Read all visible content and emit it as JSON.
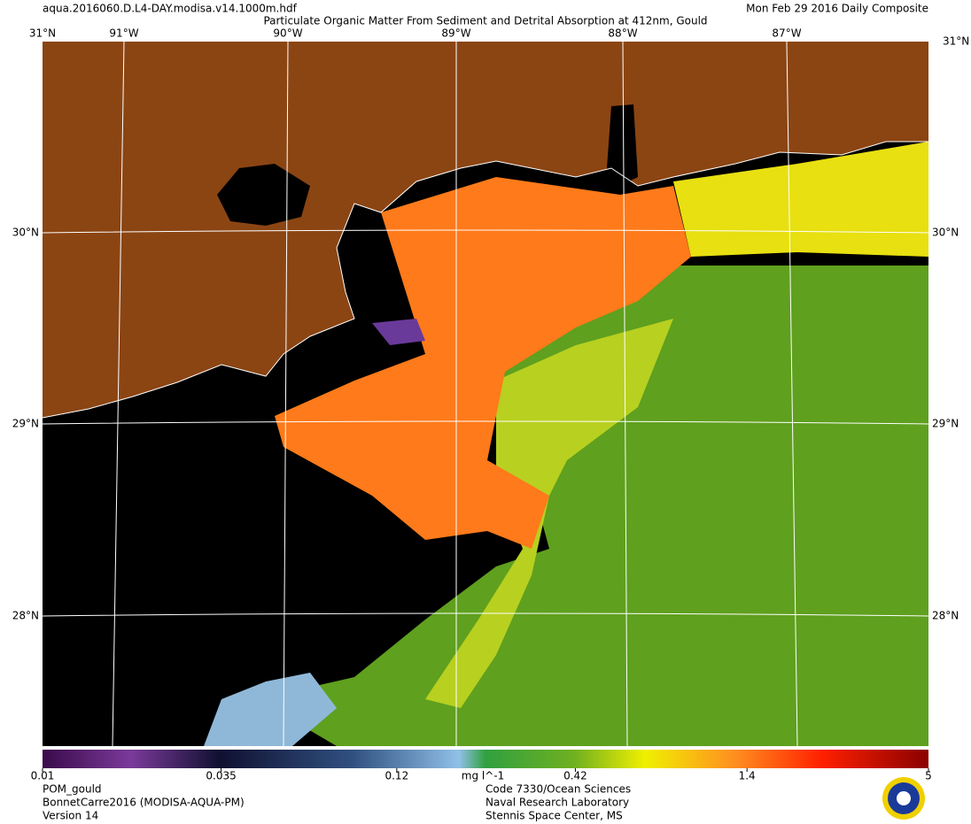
{
  "header": {
    "file": "aqua.2016060.D.L4-DAY.modisa.v14.1000m.hdf",
    "title": "Particulate Organic Matter From Sediment and Detrital Absorption at 412nm, Gould",
    "date": "Mon Feb 29 2016 Daily Composite"
  },
  "map": {
    "lon_labels": [
      "91°W",
      "90°W",
      "89°W",
      "88°W",
      "87°W"
    ],
    "lat_labels": [
      "31°N",
      "30°N",
      "29°N",
      "28°N"
    ]
  },
  "colorbar": {
    "lim": [
      0.01,
      5
    ],
    "log": true,
    "ticks": [
      0.01,
      0.035,
      0.12,
      0.42,
      1.4,
      5
    ],
    "unit": "mg l^-1"
  },
  "footer": {
    "left": [
      "POM_gould",
      "BonnetCarre2016 (MODISA-AQUA-PM)",
      "Version 14"
    ],
    "center": [
      "Code 7330/Ocean Sciences",
      "Naval Research Laboratory",
      "Stennis Space Center, MS"
    ]
  }
}
